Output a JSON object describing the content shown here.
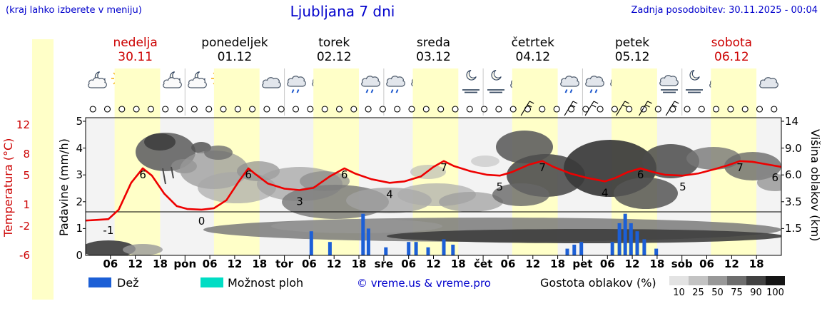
{
  "header": {
    "hint": "(kraj lahko izberete v meniju)",
    "title": "Ljubljana 7 dni",
    "updated": "Zadnja posodobitev: 30.11.2025 - 00:04"
  },
  "days": [
    {
      "name": "nedelja",
      "date": "30.11",
      "color": "#cc0000"
    },
    {
      "name": "ponedeljek",
      "date": "01.12",
      "color": "#000000"
    },
    {
      "name": "torek",
      "date": "02.12",
      "color": "#000000"
    },
    {
      "name": "sreda",
      "date": "03.12",
      "color": "#000000"
    },
    {
      "name": "četrtek",
      "date": "04.12",
      "color": "#000000"
    },
    {
      "name": "petek",
      "date": "05.12",
      "color": "#000000"
    },
    {
      "name": "sobota",
      "date": "06.12",
      "color": "#cc0000"
    }
  ],
  "axes": {
    "temp_label": "Temperatura (°C)",
    "temp_color": "#cc0000",
    "temp_ticks": [
      12,
      8,
      5,
      1,
      -2,
      -6
    ],
    "precip_label": "Padavine (mm/h)",
    "precip_ticks": [
      5,
      4,
      3,
      2,
      1,
      0
    ],
    "cloud_label": "Višina oblakov (km)",
    "cloud_ticks": [
      "14",
      "9.0",
      "6.0",
      "3.5",
      "1.5"
    ]
  },
  "x_ticks": [
    {
      "h": 6,
      "label": "06"
    },
    {
      "h": 12,
      "label": "12"
    },
    {
      "h": 18,
      "label": "18"
    },
    {
      "h": 24,
      "label": "pon",
      "boundary": true
    },
    {
      "h": 30,
      "label": "06"
    },
    {
      "h": 36,
      "label": "12"
    },
    {
      "h": 42,
      "label": "18"
    },
    {
      "h": 48,
      "label": "tor",
      "boundary": true
    },
    {
      "h": 54,
      "label": "06"
    },
    {
      "h": 60,
      "label": "12"
    },
    {
      "h": 66,
      "label": "18"
    },
    {
      "h": 72,
      "label": "sre",
      "boundary": true
    },
    {
      "h": 78,
      "label": "06"
    },
    {
      "h": 84,
      "label": "12"
    },
    {
      "h": 90,
      "label": "18"
    },
    {
      "h": 96,
      "label": "čet",
      "boundary": true
    },
    {
      "h": 102,
      "label": "06"
    },
    {
      "h": 108,
      "label": "12"
    },
    {
      "h": 114,
      "label": "18"
    },
    {
      "h": 120,
      "label": "pet",
      "boundary": true
    },
    {
      "h": 126,
      "label": "06"
    },
    {
      "h": 132,
      "label": "12"
    },
    {
      "h": 138,
      "label": "18"
    },
    {
      "h": 144,
      "label": "sob",
      "boundary": true
    },
    {
      "h": 150,
      "label": "06"
    },
    {
      "h": 156,
      "label": "12"
    },
    {
      "h": 162,
      "label": "18"
    }
  ],
  "legend": {
    "rain": "Dež",
    "showers": "Možnost ploh",
    "copyright": "© vreme.us & vreme.pro",
    "cloud_density": "Gostota oblakov (%)",
    "density_ticks": [
      "10",
      "25",
      "50",
      "75",
      "90",
      "100"
    ],
    "density_greys": [
      "#e3e3e3",
      "#c3c3c3",
      "#989898",
      "#6d6d6d",
      "#414141",
      "#151515"
    ],
    "rain_color": "#1c5fd6",
    "showers_color": "#00ddc4"
  },
  "chart_data": {
    "type": "line",
    "title": "Ljubljana 7 dni",
    "x_unit": "hours from 30.11.2025 00:00",
    "x_range": [
      0,
      168
    ],
    "temp_axis_c": [
      -6,
      13
    ],
    "precip_axis_mm": [
      0,
      5.1
    ],
    "day_band_color": "#ffffc8",
    "daylight_hours": [
      7,
      18
    ],
    "temperature_c": {
      "color": "#ee0000",
      "points": [
        [
          0,
          -1.2
        ],
        [
          3,
          -1.1
        ],
        [
          5.5,
          -1
        ],
        [
          8,
          0.3
        ],
        [
          11,
          4
        ],
        [
          13.8,
          6
        ],
        [
          16,
          5
        ],
        [
          19,
          2.5
        ],
        [
          22,
          0.8
        ],
        [
          24.5,
          0.4
        ],
        [
          28,
          0.3
        ],
        [
          31,
          0.5
        ],
        [
          34,
          1.6
        ],
        [
          37,
          4.2
        ],
        [
          39.3,
          6
        ],
        [
          41,
          5.2
        ],
        [
          44,
          3.9
        ],
        [
          48,
          3.2
        ],
        [
          51.7,
          3
        ],
        [
          55,
          3.3
        ],
        [
          59,
          4.9
        ],
        [
          62.5,
          6
        ],
        [
          65,
          5.3
        ],
        [
          69,
          4.5
        ],
        [
          73.4,
          4
        ],
        [
          77,
          4.2
        ],
        [
          81,
          4.9
        ],
        [
          84,
          6.2
        ],
        [
          86.5,
          7
        ],
        [
          89,
          6.3
        ],
        [
          93,
          5.6
        ],
        [
          97,
          5.1
        ],
        [
          100,
          5
        ],
        [
          103,
          5.5
        ],
        [
          107,
          6.5
        ],
        [
          110.3,
          7
        ],
        [
          113,
          6.2
        ],
        [
          117,
          5.3
        ],
        [
          121,
          4.7
        ],
        [
          125.4,
          4.2
        ],
        [
          128,
          4.7
        ],
        [
          131,
          5.5
        ],
        [
          134,
          6
        ],
        [
          137,
          5.5
        ],
        [
          140,
          5.1
        ],
        [
          144.2,
          5
        ],
        [
          148,
          5.3
        ],
        [
          152,
          5.9
        ],
        [
          155,
          6.4
        ],
        [
          158,
          7
        ],
        [
          161,
          6.9
        ],
        [
          164,
          6.6
        ],
        [
          168,
          6.2
        ]
      ]
    },
    "temp_point_labels": [
      {
        "h": 5.5,
        "t": -1,
        "text": "-1",
        "pos": "below"
      },
      {
        "h": 13.8,
        "t": 6,
        "text": "6",
        "pos": "above"
      },
      {
        "h": 28,
        "t": 0.3,
        "text": "0",
        "pos": "below"
      },
      {
        "h": 39.3,
        "t": 6,
        "text": "6",
        "pos": "above"
      },
      {
        "h": 51.7,
        "t": 3,
        "text": "3",
        "pos": "below"
      },
      {
        "h": 62.5,
        "t": 6,
        "text": "6",
        "pos": "above"
      },
      {
        "h": 73.4,
        "t": 4,
        "text": "4",
        "pos": "below"
      },
      {
        "h": 86.5,
        "t": 7,
        "text": "7",
        "pos": "above"
      },
      {
        "h": 100,
        "t": 5,
        "text": "5",
        "pos": "below"
      },
      {
        "h": 110.3,
        "t": 7,
        "text": "7",
        "pos": "above"
      },
      {
        "h": 125.4,
        "t": 4.2,
        "text": "4",
        "pos": "below"
      },
      {
        "h": 134,
        "t": 6,
        "text": "6",
        "pos": "above"
      },
      {
        "h": 144.2,
        "t": 5,
        "text": "5",
        "pos": "below"
      },
      {
        "h": 158,
        "t": 7,
        "text": "7",
        "pos": "above"
      },
      {
        "h": 166.5,
        "t": 6.3,
        "text": "6",
        "pos": "below"
      }
    ],
    "precipitation_mm_h": [
      [
        54.5,
        0.9
      ],
      [
        59,
        0.5
      ],
      [
        67,
        1.55
      ],
      [
        68.3,
        1.0
      ],
      [
        72.5,
        0.3
      ],
      [
        78,
        0.5
      ],
      [
        79.8,
        0.5
      ],
      [
        82.7,
        0.3
      ],
      [
        86.5,
        0.6
      ],
      [
        88.7,
        0.4
      ],
      [
        116.3,
        0.25
      ],
      [
        118,
        0.4
      ],
      [
        119.7,
        0.5
      ],
      [
        127.2,
        0.5
      ],
      [
        128.9,
        1.2
      ],
      [
        130.3,
        1.55
      ],
      [
        131.7,
        1.2
      ],
      [
        133.2,
        0.9
      ],
      [
        134.9,
        0.6
      ],
      [
        137.8,
        0.25
      ]
    ],
    "weather_icons": [
      "moon-cloud",
      "sun-cloud",
      "sun-cloud",
      "moon-cloud",
      "moon-cloud",
      "sun-cloud",
      "sun-cloud",
      "cloud",
      "cloud-rain",
      "cloud-rain",
      "cloud-rain",
      "cloud-rain",
      "cloud-rain",
      "cloud-rain",
      "cloud-rain",
      "moon-fog",
      "moon-fog",
      "cloud",
      "cloud",
      "cloud-rain",
      "cloud-rain",
      "cloud-rain",
      "cloud-rain",
      "cloud-fog",
      "moon-fog",
      "cloud",
      "cloud",
      "cloud"
    ],
    "wind_barb_hours": [
      106,
      116.5,
      121.5,
      129,
      134.5,
      141
    ],
    "cloud_circle_count": 48,
    "cloud_cover_blobs": [
      {
        "cx": 152,
        "cy": 349,
        "rx": 38,
        "ry": 12,
        "f": "#4d4d4d",
        "o": 1
      },
      {
        "cx": 200,
        "cy": 350,
        "rx": 28,
        "ry": 8,
        "f": "#9a9a9a",
        "o": 0.8
      },
      {
        "cx": 232,
        "cy": 213,
        "rx": 42,
        "ry": 27,
        "f": "#6a6a6a",
        "o": 0.95
      },
      {
        "cx": 224,
        "cy": 199,
        "rx": 22,
        "ry": 12,
        "f": "#3f3f3f",
        "o": 0.9
      },
      {
        "cx": 258,
        "cy": 233,
        "rx": 18,
        "ry": 10,
        "f": "#8a8a8a",
        "o": 0.8
      },
      {
        "cx": 282,
        "cy": 207,
        "rx": 14,
        "ry": 8,
        "f": "#555555",
        "o": 0.85
      },
      {
        "cx": 300,
        "cy": 238,
        "rx": 48,
        "ry": 27,
        "f": "#9a9a9a",
        "o": 0.75
      },
      {
        "cx": 306,
        "cy": 214,
        "rx": 20,
        "ry": 10,
        "f": "#6f6f6f",
        "o": 0.8
      },
      {
        "cx": 332,
        "cy": 263,
        "rx": 55,
        "ry": 22,
        "f": "#a8a8a8",
        "o": 0.7
      },
      {
        "cx": 362,
        "cy": 240,
        "rx": 30,
        "ry": 14,
        "f": "#8f8f8f",
        "o": 0.7
      },
      {
        "cx": 420,
        "cy": 258,
        "rx": 60,
        "ry": 24,
        "f": "#9f9f9f",
        "o": 0.7
      },
      {
        "cx": 455,
        "cy": 254,
        "rx": 35,
        "ry": 14,
        "f": "#8a8a8a",
        "o": 0.7
      },
      {
        "cx": 470,
        "cy": 283,
        "rx": 75,
        "ry": 24,
        "f": "#7d7d7d",
        "o": 0.85
      },
      {
        "cx": 545,
        "cy": 281,
        "rx": 60,
        "ry": 18,
        "f": "#a3a3a3",
        "o": 0.75
      },
      {
        "cx": 600,
        "cy": 241,
        "rx": 25,
        "ry": 10,
        "f": "#b2b2b2",
        "o": 0.6
      },
      {
        "cx": 612,
        "cy": 273,
        "rx": 55,
        "ry": 16,
        "f": "#ababab",
        "o": 0.7
      },
      {
        "cx": 660,
        "cy": 283,
        "rx": 45,
        "ry": 14,
        "f": "#9b9b9b",
        "o": 0.7
      },
      {
        "cx": 690,
        "cy": 322,
        "rx": 405,
        "ry": 17,
        "f": "#7a7a7a",
        "o": 0.85
      },
      {
        "cx": 820,
        "cy": 331,
        "rx": 278,
        "ry": 10,
        "f": "#3e3e3e",
        "o": 0.9
      },
      {
        "cx": 500,
        "cy": 317,
        "rx": 120,
        "ry": 10,
        "f": "#999999",
        "o": 0.6
      },
      {
        "cx": 735,
        "cy": 206,
        "rx": 40,
        "ry": 23,
        "f": "#5e5e5e",
        "o": 0.9
      },
      {
        "cx": 765,
        "cy": 246,
        "rx": 55,
        "ry": 30,
        "f": "#4e4e4e",
        "o": 0.9
      },
      {
        "cx": 730,
        "cy": 273,
        "rx": 40,
        "ry": 16,
        "f": "#666666",
        "o": 0.8
      },
      {
        "cx": 855,
        "cy": 236,
        "rx": 65,
        "ry": 40,
        "f": "#3a3a3a",
        "o": 0.92
      },
      {
        "cx": 905,
        "cy": 271,
        "rx": 45,
        "ry": 22,
        "f": "#555555",
        "o": 0.85
      },
      {
        "cx": 940,
        "cy": 226,
        "rx": 40,
        "ry": 24,
        "f": "#4a4a4a",
        "o": 0.85
      },
      {
        "cx": 1000,
        "cy": 222,
        "rx": 38,
        "ry": 16,
        "f": "#777777",
        "o": 0.8
      },
      {
        "cx": 1055,
        "cy": 233,
        "rx": 40,
        "ry": 20,
        "f": "#6a6a6a",
        "o": 0.8
      },
      {
        "cx": 1086,
        "cy": 256,
        "rx": 25,
        "ry": 12,
        "f": "#888888",
        "o": 0.7
      },
      {
        "cx": 680,
        "cy": 226,
        "rx": 20,
        "ry": 8,
        "f": "#b5b5b5",
        "o": 0.5
      }
    ]
  }
}
